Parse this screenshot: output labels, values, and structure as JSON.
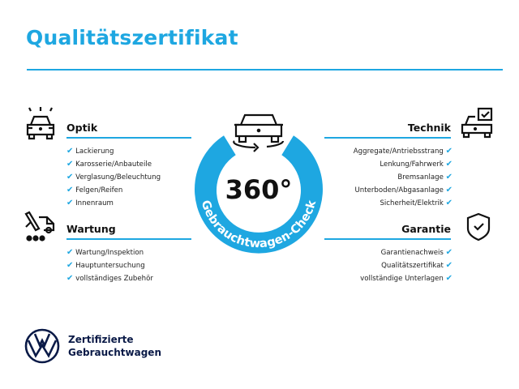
{
  "header": {
    "title": "Qualitätszertifikat"
  },
  "center": {
    "degrees": "360°",
    "arc_text": "Gebrauchtwagen-Check"
  },
  "sections": {
    "optik": {
      "title": "Optik",
      "items": [
        "Lackierung",
        "Karosserie/Anbauteile",
        "Verglasung/Beleuchtung",
        "Felgen/Reifen",
        "Innenraum"
      ]
    },
    "wartung": {
      "title": "Wartung",
      "items": [
        "Wartung/Inspektion",
        "Hauptuntersuchung",
        "vollständiges Zubehör"
      ]
    },
    "technik": {
      "title": "Technik",
      "items": [
        "Aggregate/Antriebsstrang",
        "Lenkung/Fahrwerk",
        "Bremsanlage",
        "Unterboden/Abgasanlage",
        "Sicherheit/Elektrik"
      ]
    },
    "garantie": {
      "title": "Garantie",
      "items": [
        "Garantienachweis",
        "Qualitätszertifikat",
        "vollständige Unterlagen"
      ]
    }
  },
  "check_symbol": "✔",
  "footer": {
    "line1": "Zertifizierte",
    "line2": "Gebrauchtwagen"
  },
  "colors": {
    "accent": "#1ea7e1",
    "brand_navy": "#0a1a47"
  },
  "icons": [
    "car-light-icon",
    "car-service-icon",
    "car-check-icon",
    "shield-check-icon",
    "car-rotate-icon",
    "vw-logo-icon"
  ]
}
